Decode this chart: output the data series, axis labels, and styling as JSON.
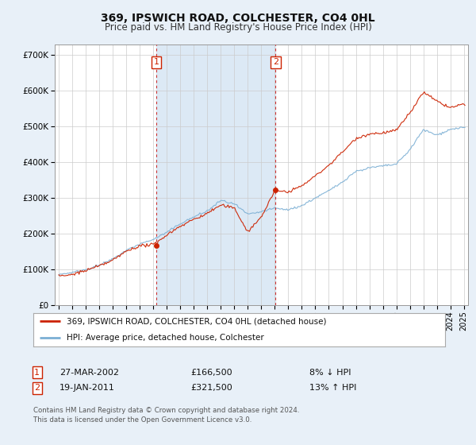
{
  "title": "369, IPSWICH ROAD, COLCHESTER, CO4 0HL",
  "subtitle": "Price paid vs. HM Land Registry's House Price Index (HPI)",
  "bg_color": "#e8f0f8",
  "plot_bg": "#ffffff",
  "red_line_label": "369, IPSWICH ROAD, COLCHESTER, CO4 0HL (detached house)",
  "blue_line_label": "HPI: Average price, detached house, Colchester",
  "transaction1_date": "27-MAR-2002",
  "transaction1_price": "£166,500",
  "transaction1_hpi": "8% ↓ HPI",
  "transaction1_year": 2002.23,
  "transaction1_value": 166500,
  "transaction2_date": "19-JAN-2011",
  "transaction2_price": "£321,500",
  "transaction2_hpi": "13% ↑ HPI",
  "transaction2_year": 2011.05,
  "transaction2_value": 321500,
  "footer": "Contains HM Land Registry data © Crown copyright and database right 2024.\nThis data is licensed under the Open Government Licence v3.0.",
  "ylabel_ticks": [
    "£0",
    "£100K",
    "£200K",
    "£300K",
    "£400K",
    "£500K",
    "£600K",
    "£700K"
  ],
  "ytick_vals": [
    0,
    100000,
    200000,
    300000,
    400000,
    500000,
    600000,
    700000
  ],
  "ylim": [
    0,
    730000
  ],
  "xlim_start": 1994.7,
  "xlim_end": 2025.3
}
